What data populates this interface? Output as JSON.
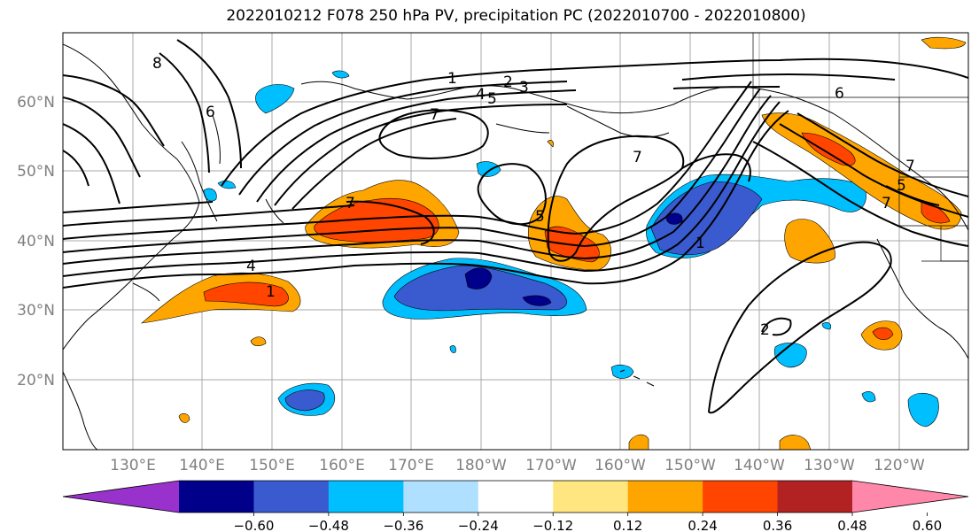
{
  "title": "2022010212 F078 250 hPa PV, precipitation PC (2022010700 - 2022010800)",
  "lat_labels": [
    "60°N",
    "50°N",
    "40°N",
    "30°N",
    "20°N"
  ],
  "lon_labels": [
    "130°E",
    "140°E",
    "150°E",
    "160°E",
    "170°E",
    "180°W",
    "170°W",
    "160°W",
    "150°W",
    "140°W",
    "130°W",
    "120°W"
  ],
  "colorbar": {
    "colors": [
      "#9932cc",
      "#00008b",
      "#3a5bd0",
      "#00bfff",
      "#b0e0ff",
      "#ffffff",
      "#ffe680",
      "#ffa500",
      "#ff4500",
      "#b22222",
      "#ff88aa"
    ],
    "tick_labels": [
      "−0.60",
      "−0.48",
      "−0.36",
      "−0.24",
      "−0.12",
      "0.12",
      "0.24",
      "0.36",
      "0.48",
      "0.60"
    ]
  },
  "contour_labels": [
    "8",
    "6",
    "1",
    "2",
    "3",
    "4",
    "5",
    "7",
    "7",
    "7",
    "5",
    "6",
    "7",
    "1",
    "4",
    "1",
    "7",
    "5",
    "2"
  ]
}
